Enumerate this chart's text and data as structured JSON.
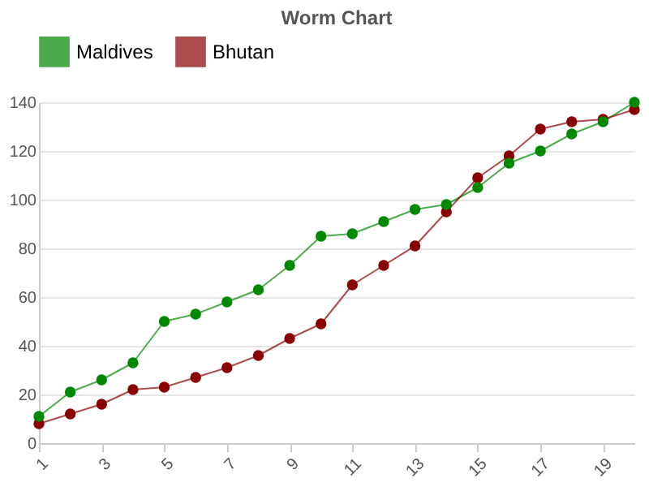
{
  "chart_data": {
    "type": "line",
    "title": "Worm Chart",
    "x": [
      1,
      2,
      3,
      4,
      5,
      6,
      7,
      8,
      9,
      10,
      11,
      12,
      13,
      14,
      15,
      16,
      17,
      18,
      19,
      20
    ],
    "series": [
      {
        "name": "Maldives",
        "color": "#008800",
        "values": [
          11,
          21,
          26,
          33,
          50,
          53,
          58,
          63,
          73,
          85,
          86,
          91,
          96,
          98,
          105,
          115,
          120,
          127,
          132,
          140
        ]
      },
      {
        "name": "Bhutan",
        "color": "#880000",
        "values": [
          8,
          12,
          16,
          22,
          23,
          27,
          31,
          36,
          43,
          49,
          65,
          73,
          81,
          95,
          109,
          118,
          129,
          132,
          133,
          137
        ]
      }
    ],
    "xlim": [
      1,
      20
    ],
    "xticks": [
      1,
      3,
      5,
      7,
      9,
      11,
      13,
      15,
      17,
      19
    ],
    "ylim": [
      0,
      140
    ],
    "yticks": [
      0,
      20,
      40,
      60,
      80,
      100,
      120,
      140
    ],
    "grid": "y",
    "legend": "top",
    "marker": "circle",
    "line_style": "solid"
  }
}
